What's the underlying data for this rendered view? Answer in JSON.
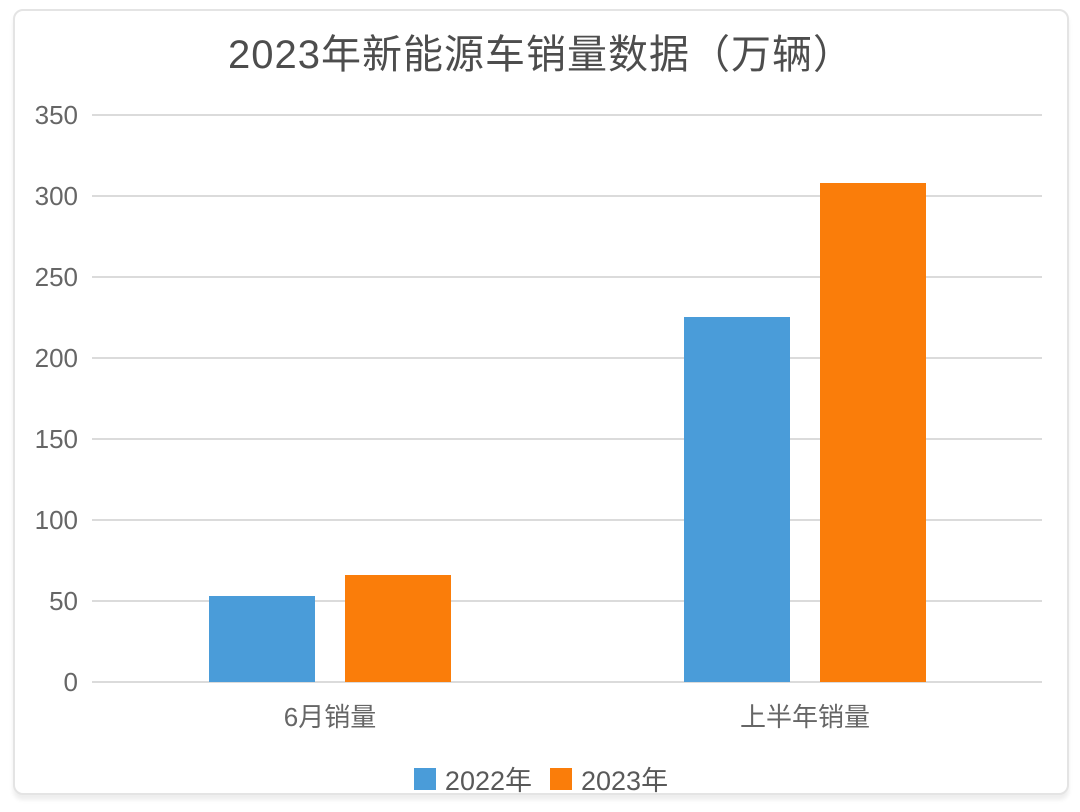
{
  "chart_data": {
    "type": "bar",
    "title": "2023年新能源车销量数据（万辆）",
    "categories": [
      "6月销量",
      "上半年销量"
    ],
    "series": [
      {
        "name": "2022年",
        "color": "#4A9CD9",
        "values": [
          53,
          225
        ]
      },
      {
        "name": "2023年",
        "color": "#FA7D0A",
        "values": [
          66,
          308
        ]
      }
    ],
    "xlabel": "",
    "ylabel": "",
    "ylim": [
      0,
      350
    ],
    "yticks": [
      0,
      50,
      100,
      150,
      200,
      250,
      300,
      350
    ],
    "grid": true,
    "legend_position": "bottom",
    "colors": {
      "title_text": "#4d4d4d",
      "axis_text": "#666666",
      "legend_text": "#595959",
      "gridline": "#dbdbdb",
      "card_border": "#e4e4e4",
      "background": "#ffffff"
    }
  }
}
